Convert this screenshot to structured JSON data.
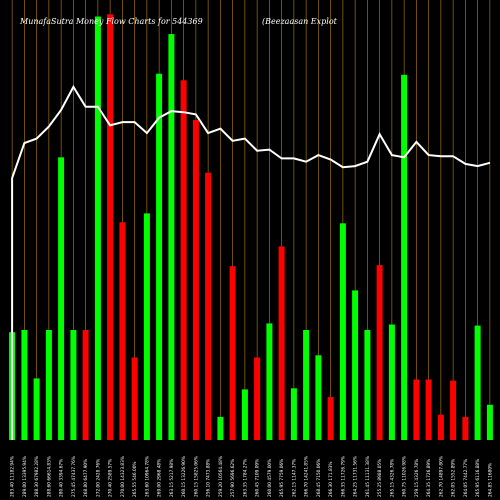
{
  "chart_data": {
    "type": "bar",
    "title": "MunafaSutra Money Flow Charts for 544369",
    "subtitle": "(Beezaasan Explot",
    "x_labels": [
      "283.40 11182.94%",
      "289.00 13395.94%",
      "288.30 67982.28%",
      "288.60 66614.83%",
      "280.40 3394.67%",
      "275.45 47437.76%",
      "268.80 6477.90%",
      "272.00 2428.76%",
      "270.40 2589.57%",
      "270.00 14323.83%",
      "265.55 546.00%",
      "263.60 10964.78%",
      "269.00 2968.48%",
      "263.15 5217.98%",
      "260.15 13226.90%",
      "260.15 15825.06%",
      "256.10 7473.88%",
      "259.20 10564.48%",
      "257.90 5696.62%",
      "263.35 1784.27%",
      "260.45 7109.09%",
      "260.00 4579.00%",
      "265.95 7759.06%",
      "262.15 1147.37%",
      "266.70 14241.85%",
      "268.45 7150.06%",
      "266.30 171.83%",
      "266.35 11726.79%",
      "264.25 11731.56%",
      "261.45 11131.38%",
      "255.25 8988.05%",
      "265.15 4326.78%",
      "260.75 11026.98%",
      "259.15 4326.78%",
      "264.35 1726.89%",
      "262.70 14897.80%",
      "262.05 1552.89%",
      "264.05 7442.77%",
      "265.95 6116.88%",
      "264.85 11680%"
    ],
    "bars": [
      {
        "color": "green",
        "value": 98
      },
      {
        "color": "green",
        "value": 100
      },
      {
        "color": "green",
        "value": 56
      },
      {
        "color": "green",
        "value": 100
      },
      {
        "color": "green",
        "value": 257
      },
      {
        "color": "green",
        "value": 100
      },
      {
        "color": "red",
        "value": 100
      },
      {
        "color": "green",
        "value": 385
      },
      {
        "color": "red",
        "value": 387
      },
      {
        "color": "red",
        "value": 198
      },
      {
        "color": "red",
        "value": 75
      },
      {
        "color": "green",
        "value": 206
      },
      {
        "color": "green",
        "value": 333
      },
      {
        "color": "green",
        "value": 369
      },
      {
        "color": "red",
        "value": 327
      },
      {
        "color": "red",
        "value": 291
      },
      {
        "color": "red",
        "value": 243
      },
      {
        "color": "green",
        "value": 21
      },
      {
        "color": "red",
        "value": 158
      },
      {
        "color": "green",
        "value": 46
      },
      {
        "color": "red",
        "value": 75
      },
      {
        "color": "green",
        "value": 106
      },
      {
        "color": "red",
        "value": 176
      },
      {
        "color": "green",
        "value": 47
      },
      {
        "color": "green",
        "value": 100
      },
      {
        "color": "green",
        "value": 77
      },
      {
        "color": "red",
        "value": 39
      },
      {
        "color": "green",
        "value": 197
      },
      {
        "color": "green",
        "value": 136
      },
      {
        "color": "green",
        "value": 100
      },
      {
        "color": "red",
        "value": 159
      },
      {
        "color": "green",
        "value": 105
      },
      {
        "color": "green",
        "value": 332
      },
      {
        "color": "red",
        "value": 55
      },
      {
        "color": "red",
        "value": 55
      },
      {
        "color": "red",
        "value": 23
      },
      {
        "color": "red",
        "value": 54
      },
      {
        "color": "red",
        "value": 21
      },
      {
        "color": "green",
        "value": 104
      },
      {
        "color": "green",
        "value": 32
      }
    ],
    "line": [
      238,
      270,
      274,
      285,
      300,
      321,
      303,
      303,
      286,
      289,
      289,
      279,
      293,
      299,
      298,
      296,
      279,
      283,
      272,
      274,
      263,
      264,
      256,
      256,
      253,
      259,
      255,
      248,
      249,
      253,
      278,
      259,
      257,
      271,
      259,
      258,
      258,
      251,
      249,
      252
    ],
    "ylim": [
      0,
      400
    ],
    "line_clip": [
      0,
      440
    ],
    "colors": {
      "green": "#00ff00",
      "red": "#ff0000",
      "line": "#ffffff",
      "grid": "#b8860b",
      "background": "#000000"
    }
  }
}
